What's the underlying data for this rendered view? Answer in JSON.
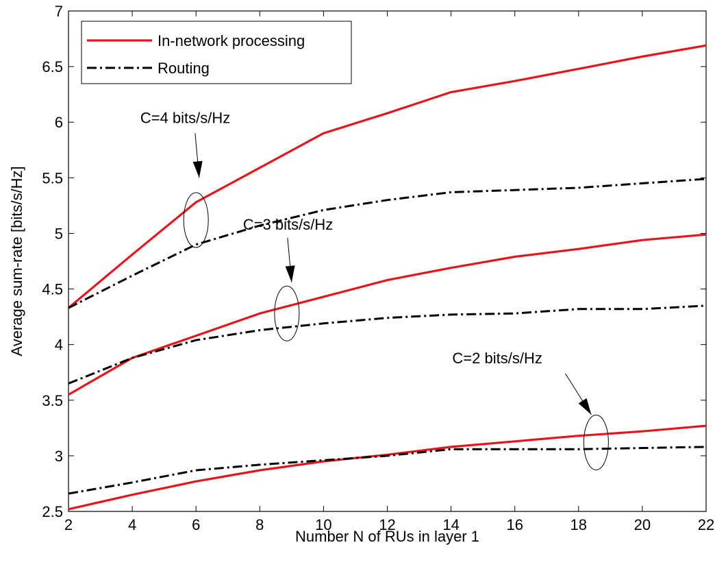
{
  "chart_data": {
    "type": "line",
    "title": "",
    "xlabel": "Number N of RUs in layer 1",
    "ylabel": "Average sum-rate [bits/s/Hz]",
    "xlim": [
      2,
      22
    ],
    "ylim": [
      2.5,
      7
    ],
    "xticks": [
      2,
      4,
      6,
      8,
      10,
      12,
      14,
      16,
      18,
      20,
      22
    ],
    "yticks": [
      2.5,
      3,
      3.5,
      4,
      4.5,
      5,
      5.5,
      6,
      6.5,
      7
    ],
    "xtick_labels": [
      "2",
      "4",
      "6",
      "8",
      "10",
      "12",
      "14",
      "16",
      "18",
      "20",
      "22"
    ],
    "ytick_labels": [
      "2.5",
      "3",
      "3.5",
      "4",
      "4.5",
      "5",
      "5.5",
      "6",
      "6.5",
      "7"
    ],
    "grid": false,
    "legend_position": "top-left",
    "legend": [
      {
        "label": "In-network processing",
        "color": "#e8141a",
        "style": "solid"
      },
      {
        "label": "Routing",
        "color": "#000000",
        "style": "dash-dot"
      }
    ],
    "x": [
      2,
      4,
      6,
      8,
      10,
      12,
      14,
      16,
      18,
      20,
      22
    ],
    "series": [
      {
        "group": "C=4 bits/s/Hz",
        "legend_entry": "In-network processing",
        "color": "#e8141a",
        "style": "solid",
        "values": [
          4.33,
          4.81,
          5.28,
          5.59,
          5.9,
          6.08,
          6.27,
          6.37,
          6.48,
          6.59,
          6.69
        ]
      },
      {
        "group": "C=4 bits/s/Hz",
        "legend_entry": "Routing",
        "color": "#000000",
        "style": "dash-dot",
        "values": [
          4.33,
          4.62,
          4.9,
          5.07,
          5.21,
          5.3,
          5.37,
          5.39,
          5.41,
          5.45,
          5.49
        ]
      },
      {
        "group": "C=3 bits/s/Hz",
        "legend_entry": "In-network processing",
        "color": "#e8141a",
        "style": "solid",
        "values": [
          3.55,
          3.88,
          4.08,
          4.28,
          4.43,
          4.58,
          4.69,
          4.79,
          4.86,
          4.94,
          4.99
        ]
      },
      {
        "group": "C=3 bits/s/Hz",
        "legend_entry": "Routing",
        "color": "#000000",
        "style": "dash-dot",
        "values": [
          3.65,
          3.88,
          4.04,
          4.13,
          4.19,
          4.24,
          4.27,
          4.28,
          4.32,
          4.32,
          4.35
        ]
      },
      {
        "group": "C=2 bits/s/Hz",
        "legend_entry": "In-network processing",
        "color": "#e8141a",
        "style": "solid",
        "values": [
          2.52,
          2.65,
          2.77,
          2.87,
          2.95,
          3.01,
          3.08,
          3.13,
          3.18,
          3.22,
          3.27
        ]
      },
      {
        "group": "C=2 bits/s/Hz",
        "legend_entry": "Routing",
        "color": "#000000",
        "style": "dash-dot",
        "values": [
          2.66,
          2.76,
          2.87,
          2.92,
          2.96,
          3.0,
          3.06,
          3.06,
          3.06,
          3.07,
          3.08
        ]
      }
    ],
    "annotations": [
      {
        "text": "C=4 bits/s/Hz",
        "arrow_to": [
          6.1,
          5.5
        ],
        "ellipse_center": [
          6.0,
          5.12
        ]
      },
      {
        "text": "C=3 bits/s/Hz",
        "arrow_to": [
          9.0,
          4.56
        ],
        "ellipse_center": [
          8.85,
          4.28
        ]
      },
      {
        "text": "C=2 bits/s/Hz",
        "arrow_to": [
          18.4,
          3.37
        ],
        "ellipse_center": [
          18.55,
          3.12
        ]
      }
    ]
  }
}
